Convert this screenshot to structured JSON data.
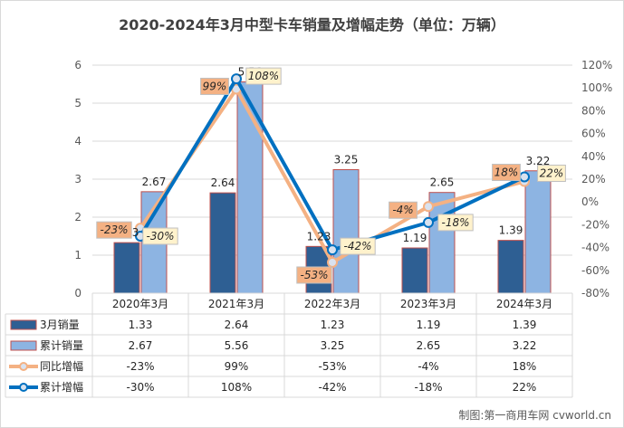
{
  "title": "2020-2024年3月中型卡车销量及增幅走势（单位：万辆）",
  "source": "制图:第一商用车网 cvworld.cn",
  "colors": {
    "monthly_sales": "#2e5f93",
    "cumulative_sales": "#8db4e2",
    "bar_border": "#c0504d",
    "yoy_growth": "#f4b183",
    "cumulative_growth": "#0070c0",
    "yoy_label_bg": "#f4b183",
    "cum_label_bg": "#fff2cc",
    "grid": "#d9d9d9"
  },
  "chart_data": {
    "type": "bar",
    "title": "2020-2024年3月中型卡车销量及增幅走势（单位：万辆）",
    "categories": [
      "2020年3月",
      "2021年3月",
      "2022年3月",
      "2023年3月",
      "2024年3月"
    ],
    "y_left": {
      "min": 0,
      "max": 6,
      "ticks": [
        "0",
        "1",
        "2",
        "3",
        "4",
        "5",
        "6"
      ]
    },
    "y_right": {
      "min": -80,
      "max": 120,
      "ticks": [
        "-80%",
        "-60%",
        "-40%",
        "-20%",
        "0%",
        "20%",
        "40%",
        "60%",
        "80%",
        "100%",
        "120%"
      ]
    },
    "grid": true,
    "legend_position": "data-table-below",
    "series": [
      {
        "name": "3月销量",
        "kind": "bar",
        "axis": "left",
        "values": [
          1.33,
          2.64,
          1.23,
          1.19,
          1.39
        ],
        "labels": [
          "1.33",
          "2.64",
          "1.23",
          "1.19",
          "1.39"
        ]
      },
      {
        "name": "累计销量",
        "kind": "bar",
        "axis": "left",
        "values": [
          2.67,
          5.56,
          3.25,
          2.65,
          3.22
        ],
        "labels": [
          "2.67",
          "5.56",
          "3.25",
          "2.65",
          "3.22"
        ]
      },
      {
        "name": "同比增幅",
        "kind": "line",
        "axis": "right",
        "values": [
          -23,
          99,
          -53,
          -4,
          18
        ],
        "labels": [
          "-23%",
          "99%",
          "-53%",
          "-4%",
          "18%"
        ]
      },
      {
        "name": "累计增幅",
        "kind": "line",
        "axis": "right",
        "values": [
          -30,
          108,
          -42,
          -18,
          22
        ],
        "labels": [
          "-30%",
          "108%",
          "-42%",
          "-18%",
          "22%"
        ]
      }
    ],
    "table": [
      [
        "1.33",
        "2.64",
        "1.23",
        "1.19",
        "1.39"
      ],
      [
        "2.67",
        "5.56",
        "3.25",
        "2.65",
        "3.22"
      ],
      [
        "-23%",
        "99%",
        "-53%",
        "-4%",
        "18%"
      ],
      [
        "-30%",
        "108%",
        "-42%",
        "-18%",
        "22%"
      ]
    ]
  }
}
